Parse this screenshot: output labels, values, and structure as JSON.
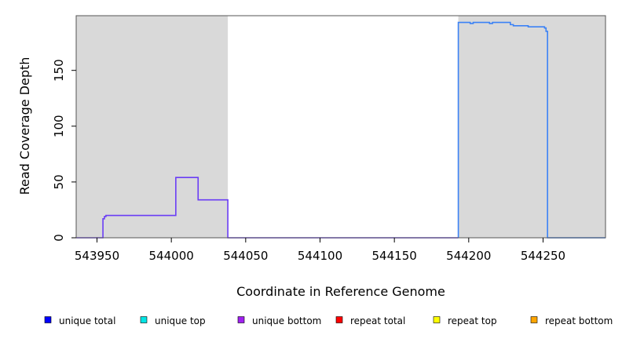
{
  "chart_data": {
    "type": "line",
    "title": "",
    "xlabel": "Coordinate in Reference Genome",
    "ylabel": "Read Coverage Depth",
    "xlim": [
      543936,
      544292
    ],
    "ylim": [
      0,
      199
    ],
    "x_ticks": [
      543950,
      544000,
      544050,
      544100,
      544150,
      544200,
      544250
    ],
    "y_ticks": [
      0,
      50,
      100,
      150
    ],
    "grid": false,
    "shaded_regions": [
      {
        "x": [
          543936,
          544038
        ],
        "color": "#d9d9d9"
      },
      {
        "x": [
          544193,
          544292
        ],
        "color": "#d9d9d9"
      }
    ],
    "legend": {
      "placement": "bottom",
      "entries": [
        {
          "label": "unique total",
          "color": "#0000ff"
        },
        {
          "label": "unique top",
          "color": "#00e5e5"
        },
        {
          "label": "unique bottom",
          "color": "#a020f0"
        },
        {
          "label": "repeat total",
          "color": "#ff0000"
        },
        {
          "label": "repeat top",
          "color": "#ffff00"
        },
        {
          "label": "repeat bottom",
          "color": "#ffa500"
        }
      ]
    },
    "series": [
      {
        "color": "#6a3df5",
        "x": [
          543936,
          543954,
          543954,
          543955,
          543955,
          543956,
          543956,
          544003,
          544003,
          544018,
          544018,
          544038,
          544038,
          544193
        ],
        "y": [
          0,
          0,
          17,
          17,
          19,
          19,
          20,
          20,
          54,
          54,
          34,
          34,
          0,
          0
        ]
      },
      {
        "color": "#3b82f6",
        "x": [
          544193,
          544193,
          544201,
          544201,
          544203,
          544203,
          544214,
          544214,
          544216,
          544216,
          544228,
          544228,
          544230,
          544230,
          544240,
          544240,
          544251,
          544251,
          544252,
          544252,
          544253,
          544253,
          544292
        ],
        "y": [
          0,
          193,
          193,
          192,
          192,
          193,
          193,
          192,
          192,
          193,
          193,
          191,
          191,
          190,
          190,
          189,
          189,
          188,
          188,
          185,
          185,
          0,
          0
        ]
      },
      {
        "color": "#90ee90",
        "x": [
          543954,
          544038
        ],
        "y": [
          0,
          0
        ]
      },
      {
        "color": "#f08080",
        "x": [
          544193,
          544253
        ],
        "y": [
          0,
          0
        ]
      }
    ]
  }
}
